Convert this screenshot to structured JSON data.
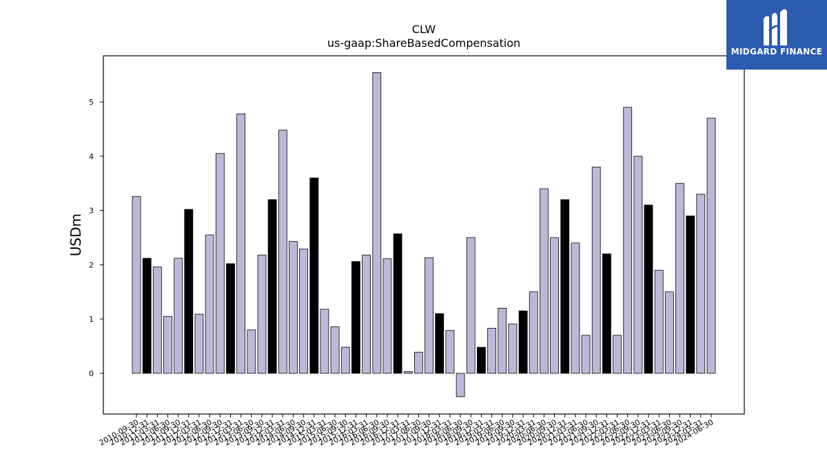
{
  "chart_data": {
    "type": "bar",
    "title": "CLW",
    "subtitle": "us-gaap:ShareBasedCompensation",
    "ylabel": "USDm",
    "xlabel": "",
    "ylim": [
      -0.75,
      5.85
    ],
    "yticks": [
      0,
      1,
      2,
      3,
      4,
      5
    ],
    "colors": {
      "light": "#bcb8d8",
      "dark": "#000000",
      "edge": "#000000"
    },
    "categories": [
      "2010-09-30",
      "2010-12-31",
      "2011-03-31",
      "2011-06-30",
      "2011-09-30",
      "2011-12-31",
      "2012-03-31",
      "2012-06-30",
      "2012-09-30",
      "2012-12-31",
      "2013-03-31",
      "2013-06-30",
      "2013-09-30",
      "2013-12-31",
      "2014-03-31",
      "2014-06-30",
      "2014-09-30",
      "2014-12-31",
      "2015-03-31",
      "2015-06-30",
      "2015-09-30",
      "2015-12-31",
      "2016-03-31",
      "2016-06-30",
      "2016-09-30",
      "2016-12-31",
      "2017-03-31",
      "2017-06-30",
      "2017-09-30",
      "2017-12-31",
      "2018-03-31",
      "2018-06-30",
      "2018-09-30",
      "2018-12-31",
      "2019-03-31",
      "2019-06-30",
      "2019-09-30",
      "2019-12-31",
      "2020-03-31",
      "2020-06-30",
      "2020-09-30",
      "2020-12-31",
      "2021-03-31",
      "2021-06-30",
      "2021-09-30",
      "2021-12-31",
      "2022-03-31",
      "2022-06-30",
      "2022-09-30",
      "2022-12-31",
      "2023-03-31",
      "2023-06-30",
      "2023-09-30",
      "2023-12-31",
      "2024-03-31",
      "2024-06-30"
    ],
    "values": [
      3.26,
      2.12,
      1.96,
      1.05,
      2.12,
      3.02,
      1.09,
      2.55,
      4.05,
      2.02,
      4.78,
      0.8,
      2.18,
      3.2,
      4.48,
      2.43,
      2.29,
      3.6,
      1.18,
      0.86,
      0.48,
      2.06,
      2.18,
      5.54,
      2.11,
      2.57,
      0.03,
      0.39,
      2.13,
      1.1,
      0.79,
      -0.43,
      2.5,
      0.48,
      0.83,
      1.2,
      0.91,
      1.15,
      1.5,
      3.4,
      2.5,
      3.2,
      2.4,
      0.7,
      3.8,
      2.2,
      0.7,
      4.9,
      4.0,
      3.1,
      1.9,
      1.5,
      3.5,
      2.9,
      3.3,
      4.7
    ],
    "highlight": [
      false,
      true,
      false,
      false,
      false,
      true,
      false,
      false,
      false,
      true,
      false,
      false,
      false,
      true,
      false,
      false,
      false,
      true,
      false,
      false,
      false,
      true,
      false,
      false,
      false,
      true,
      false,
      false,
      false,
      true,
      false,
      false,
      false,
      true,
      false,
      false,
      false,
      true,
      false,
      false,
      false,
      true,
      false,
      false,
      false,
      true,
      false,
      false,
      false,
      true,
      false,
      false,
      false,
      true,
      false,
      false
    ],
    "grid": false,
    "legend": "none"
  },
  "logo": {
    "text": "MIDGARD FINANCE"
  }
}
